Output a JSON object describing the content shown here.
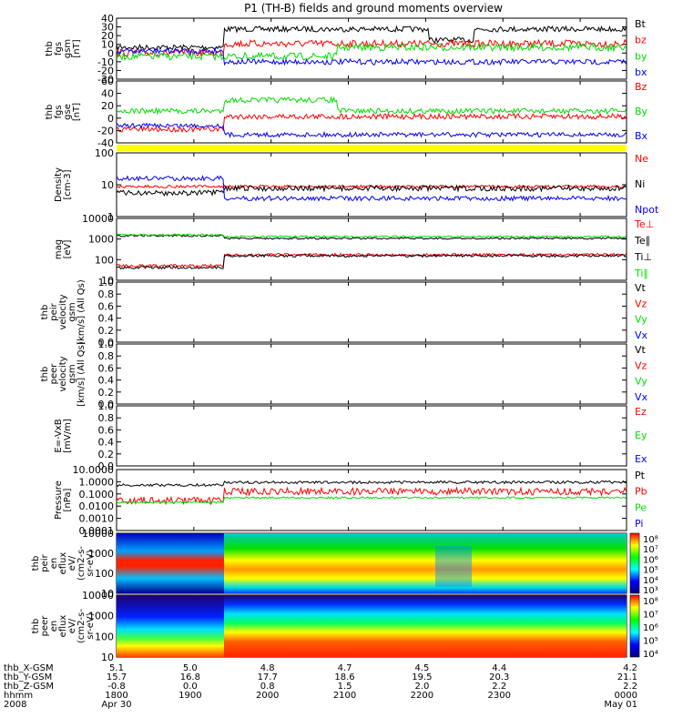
{
  "title": "P1 (TH-B) fields and ground moments overview",
  "colors": {
    "black": "#000000",
    "red": "#ff0000",
    "green": "#00dd00",
    "blue": "#0000ff",
    "yellow": "#ffff00"
  },
  "panels": [
    {
      "id": "fgs-gsm",
      "ylabel": [
        "thb",
        "fgs",
        "gsm",
        "[nT]"
      ],
      "yticks": [
        "40",
        "30",
        "20",
        "10",
        "0",
        "-10",
        "-20",
        "-30"
      ],
      "legend": [
        {
          "t": "Bt",
          "c": "black"
        },
        {
          "t": "bz",
          "c": "red"
        },
        {
          "t": "by",
          "c": "green"
        },
        {
          "t": "bx",
          "c": "blue"
        }
      ]
    },
    {
      "id": "fgs-gse",
      "ylabel": [
        "thb",
        "fgs",
        "gse",
        "[nT]"
      ],
      "yticks": [
        "60",
        "40",
        "20",
        "0",
        "-20",
        "-40"
      ],
      "legend": [
        {
          "t": "Bz",
          "c": "red"
        },
        {
          "t": "By",
          "c": "green"
        },
        {
          "t": "Bx",
          "c": "blue"
        }
      ]
    },
    {
      "id": "density",
      "ylabel": [
        "Density",
        "[cm-3]"
      ],
      "yticks": [
        "100",
        "10",
        "1"
      ],
      "legend": [
        {
          "t": "Ne",
          "c": "red"
        },
        {
          "t": "Ni",
          "c": "black"
        },
        {
          "t": "Npot",
          "c": "blue"
        }
      ]
    },
    {
      "id": "temp",
      "ylabel": [
        "mag",
        "[eV]"
      ],
      "yticks": [
        "10000",
        "1000",
        "100",
        "10"
      ],
      "legend": [
        {
          "t": "Te⊥",
          "c": "red"
        },
        {
          "t": "Te∥",
          "c": "black"
        },
        {
          "t": "Ti⊥",
          "c": "black"
        },
        {
          "t": "Ti∥",
          "c": "green"
        }
      ]
    },
    {
      "id": "peir-vel",
      "ylabel": [
        "thb",
        "peir",
        "velocity",
        "gsm",
        "[km/s] (All Qs)"
      ],
      "yticks": [
        "1.0",
        "0.8",
        "0.6",
        "0.4",
        "0.2",
        "0.0"
      ],
      "legend": [
        {
          "t": "Vt",
          "c": "black"
        },
        {
          "t": "Vz",
          "c": "red"
        },
        {
          "t": "Vy",
          "c": "green"
        },
        {
          "t": "Vx",
          "c": "blue"
        }
      ]
    },
    {
      "id": "peer-vel",
      "ylabel": [
        "thb",
        "peer",
        "velocity",
        "gsm",
        "[km/s] (All Qs)"
      ],
      "yticks": [
        "1.0",
        "0.8",
        "0.6",
        "0.4",
        "0.2",
        "0.0"
      ],
      "legend": [
        {
          "t": "Vt",
          "c": "black"
        },
        {
          "t": "Vz",
          "c": "red"
        },
        {
          "t": "Vy",
          "c": "green"
        },
        {
          "t": "Vx",
          "c": "blue"
        }
      ]
    },
    {
      "id": "efield",
      "ylabel": [
        "E=-VxB",
        "[mV/m]"
      ],
      "yticks": [
        "1.0",
        "0.8",
        "0.6",
        "0.4",
        "0.2",
        "0.0"
      ],
      "legend": [
        {
          "t": "Ez",
          "c": "red"
        },
        {
          "t": "Ey",
          "c": "green"
        },
        {
          "t": "Ex",
          "c": "blue"
        }
      ]
    },
    {
      "id": "pressure",
      "ylabel": [
        "Pressure",
        "[nPa]"
      ],
      "yticks": [
        "10.0000",
        "1.0000",
        "0.1000",
        "0.0100",
        "0.0010",
        "0.0001"
      ],
      "legend": [
        {
          "t": "Pt",
          "c": "black"
        },
        {
          "t": "Pb",
          "c": "red"
        },
        {
          "t": "Pe",
          "c": "green"
        },
        {
          "t": "Pi",
          "c": "blue"
        }
      ]
    },
    {
      "id": "peir-spec",
      "ylabel": [
        "thb",
        "peir",
        "en",
        "eflux",
        "eV/",
        "(cm2-s-",
        "sr-eV)"
      ],
      "yticks": [
        "10000",
        "1000",
        "100",
        "10"
      ],
      "cbar": [
        "10⁸",
        "10⁷",
        "10⁶",
        "10⁵",
        "10⁴",
        "10³"
      ]
    },
    {
      "id": "peer-spec",
      "ylabel": [
        "thb",
        "peer",
        "en",
        "eflux",
        "eV/",
        "(cm2-s-",
        "sr-eV)"
      ],
      "yticks": [
        "10000",
        "1000",
        "100",
        "10"
      ],
      "cbar": [
        "10⁸",
        "10⁷",
        "10⁶",
        "10⁵",
        "10⁴"
      ]
    }
  ],
  "footer": {
    "rowlabels": [
      "thb_X-GSM",
      "thb_Y-GSM",
      "thb_Z-GSM",
      "hhmm",
      "2008"
    ],
    "cols": [
      {
        "v": [
          "5.1",
          "15.7",
          "-0.8",
          "1800",
          "Apr 30"
        ]
      },
      {
        "v": [
          "5.0",
          "16.8",
          "0.0",
          "1900",
          ""
        ]
      },
      {
        "v": [
          "4.8",
          "17.7",
          "0.8",
          "2000",
          ""
        ]
      },
      {
        "v": [
          "4.7",
          "18.6",
          "1.5",
          "2100",
          ""
        ]
      },
      {
        "v": [
          "4.5",
          "19.5",
          "2.0",
          "2200",
          ""
        ]
      },
      {
        "v": [
          "4.4",
          "20.3",
          "2.2",
          "2300",
          ""
        ]
      },
      {
        "v": [
          "4.2",
          "21.1",
          "2.2",
          "0000",
          "May 01"
        ]
      }
    ]
  },
  "chart_data": {
    "type": "line",
    "x": [
      "1800",
      "1900",
      "2000",
      "2100",
      "2200",
      "2300",
      "0000"
    ],
    "series": [
      {
        "name": "Bt",
        "values": [
          10,
          8,
          27,
          24,
          24,
          18,
          17
        ]
      },
      {
        "name": "bz",
        "values": [
          2,
          0,
          20,
          10,
          8,
          8,
          8
        ]
      },
      {
        "name": "by",
        "values": [
          -5,
          -3,
          5,
          -5,
          -8,
          0,
          5
        ]
      },
      {
        "name": "bx",
        "values": [
          3,
          2,
          -10,
          -5,
          -10,
          -8,
          -10
        ]
      }
    ]
  }
}
